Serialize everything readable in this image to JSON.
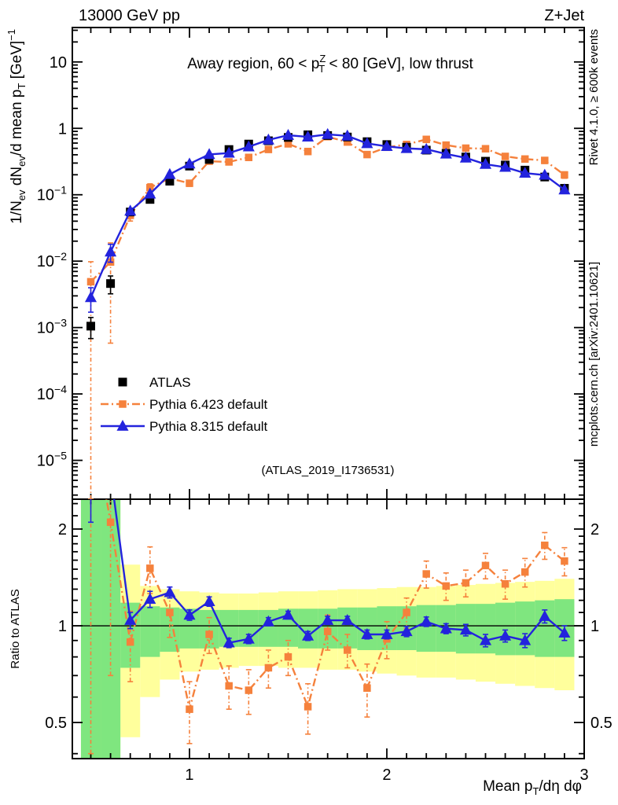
{
  "header": {
    "left": "13000 GeV pp",
    "right": "Z+Jet"
  },
  "side_notes": {
    "top": "Rivet 4.1.0, ≥ 600k events",
    "bottom": "mcplots.cern.ch [arXiv:2401.10621]"
  },
  "watermark": "(ATLAS_2019_I1736531)",
  "chart_data": {
    "type": "line",
    "title_parts": [
      {
        "t": "Away region, 60 < p"
      },
      {
        "t": "Z",
        "s": "sup"
      },
      {
        "t": "T",
        "s": "sub"
      },
      {
        "t": " < 80 [GeV], low thrust"
      }
    ],
    "ylabel_parts": [
      {
        "t": "1/N"
      },
      {
        "t": "ev",
        "s": "sub"
      },
      {
        "t": " dN"
      },
      {
        "t": "ev",
        "s": "sub"
      },
      {
        "t": "/d mean p"
      },
      {
        "t": "T",
        "s": "sub"
      },
      {
        "t": " [GeV]"
      },
      {
        "t": "−1",
        "s": "sup"
      }
    ],
    "xlabel_parts": [
      {
        "t": "Mean p"
      },
      {
        "t": "T",
        "s": "sub"
      },
      {
        "t": "/dη dφ"
      }
    ],
    "ratio_label": "Ratio to ATLAS",
    "xlim": [
      0.4064,
      3.0
    ],
    "ylim_main": [
      2.6e-06,
      33
    ],
    "ylim_ratio": [
      0.386,
      2.477
    ],
    "x_bin_halfwidth": 0.05,
    "x_major_ticks": [
      {
        "v": 1,
        "t": "1"
      },
      {
        "v": 2,
        "t": "2"
      },
      {
        "v": 3,
        "t": "3"
      }
    ],
    "x_minor_step": 0.1,
    "y_major_ticks": [
      {
        "v": 10,
        "t": "10"
      },
      {
        "v": 1,
        "t": "1"
      },
      {
        "v": 0.1,
        "t": "10",
        "e": "−1"
      },
      {
        "v": 0.01,
        "t": "10",
        "e": "−2"
      },
      {
        "v": 0.001,
        "t": "10",
        "e": "−3"
      },
      {
        "v": 0.0001,
        "t": "10",
        "e": "−4"
      },
      {
        "v": 1e-05,
        "t": "10",
        "e": "−5"
      }
    ],
    "ratio_ticks": [
      {
        "v": 2,
        "t": "2"
      },
      {
        "v": 1,
        "t": "1"
      },
      {
        "v": 0.5,
        "t": "0.5"
      }
    ],
    "ratio_minor_ticks": [
      0.4,
      0.6,
      0.7,
      0.8,
      0.9,
      1.1,
      1.2,
      1.3,
      1.4,
      1.5,
      1.6,
      1.7,
      1.8,
      1.9,
      2.2,
      2.4
    ],
    "x": [
      0.5,
      0.6,
      0.7,
      0.8,
      0.9,
      1.0,
      1.1,
      1.2,
      1.3,
      1.4,
      1.5,
      1.6,
      1.7,
      1.8,
      1.9,
      2.0,
      2.1,
      2.2,
      2.3,
      2.4,
      2.5,
      2.6,
      2.7,
      2.8,
      2.9
    ],
    "series": [
      {
        "name": "ATLAS",
        "color": "#000000",
        "marker": "square",
        "line": "none",
        "values": [
          0.00105,
          0.0046,
          0.055,
          0.085,
          0.16,
          0.27,
          0.34,
          0.48,
          0.58,
          0.65,
          0.73,
          0.8,
          0.78,
          0.74,
          0.63,
          0.57,
          0.52,
          0.47,
          0.42,
          0.37,
          0.32,
          0.28,
          0.235,
          0.185,
          0.125
        ],
        "err_rel": [
          0.35,
          0.3,
          0.06,
          0.05,
          0.04,
          0.03,
          0.03,
          0.025,
          0.025,
          0.025,
          0.025,
          0.025,
          0.025,
          0.025,
          0.025,
          0.025,
          0.025,
          0.03,
          0.03,
          0.03,
          0.03,
          0.035,
          0.04,
          0.045,
          0.05
        ]
      },
      {
        "name": "Pythia 6.423 default",
        "color": "#f5813c",
        "marker": "square",
        "line": "dashdot",
        "values": [
          0.0049,
          0.0097,
          0.049,
          0.128,
          0.176,
          0.149,
          0.32,
          0.312,
          0.365,
          0.481,
          0.584,
          0.448,
          0.749,
          0.622,
          0.403,
          0.519,
          0.572,
          0.682,
          0.559,
          0.503,
          0.493,
          0.378,
          0.345,
          0.329,
          0.199
        ],
        "err_rel": [
          1.0,
          0.94,
          0.18,
          0.14,
          0.12,
          0.1,
          0.08,
          0.07,
          0.07,
          0.06,
          0.06,
          0.07,
          0.07,
          0.07,
          0.08,
          0.08,
          0.08,
          0.09,
          0.09,
          0.09,
          0.09,
          0.1,
          0.1,
          0.1,
          0.11
        ],
        "ratio": [
          4.7,
          2.1,
          0.89,
          1.51,
          1.1,
          0.55,
          0.94,
          0.65,
          0.63,
          0.74,
          0.8,
          0.56,
          0.96,
          0.84,
          0.64,
          0.91,
          1.1,
          1.45,
          1.33,
          1.36,
          1.54,
          1.35,
          1.47,
          1.78,
          1.59
        ],
        "ratio_err": [
          4.3,
          1.4,
          0.22,
          0.25,
          0.18,
          0.12,
          0.12,
          0.1,
          0.1,
          0.1,
          0.1,
          0.1,
          0.12,
          0.1,
          0.12,
          0.12,
          0.12,
          0.14,
          0.13,
          0.13,
          0.14,
          0.14,
          0.15,
          0.17,
          0.16
        ]
      },
      {
        "name": "Pythia 8.315 default",
        "color": "#2323dd",
        "marker": "triangle",
        "line": "solid",
        "values": [
          0.00284,
          0.0138,
          0.057,
          0.103,
          0.203,
          0.292,
          0.405,
          0.425,
          0.528,
          0.67,
          0.788,
          0.744,
          0.811,
          0.77,
          0.592,
          0.536,
          0.499,
          0.484,
          0.412,
          0.359,
          0.288,
          0.26,
          0.212,
          0.198,
          0.119
        ],
        "err_rel": [
          0.4,
          0.3,
          0.05,
          0.05,
          0.04,
          0.03,
          0.03,
          0.025,
          0.025,
          0.025,
          0.025,
          0.025,
          0.025,
          0.025,
          0.025,
          0.025,
          0.03,
          0.03,
          0.03,
          0.035,
          0.035,
          0.035,
          0.04,
          0.045,
          0.05
        ],
        "ratio": [
          2.7,
          3.0,
          1.04,
          1.21,
          1.27,
          1.08,
          1.19,
          0.885,
          0.91,
          1.03,
          1.08,
          0.93,
          1.04,
          1.04,
          0.94,
          0.94,
          0.96,
          1.03,
          0.98,
          0.97,
          0.9,
          0.93,
          0.9,
          1.07,
          0.95
        ],
        "ratio_err": [
          0.6,
          0.5,
          0.06,
          0.07,
          0.05,
          0.04,
          0.04,
          0.03,
          0.03,
          0.03,
          0.03,
          0.03,
          0.03,
          0.03,
          0.03,
          0.03,
          0.035,
          0.035,
          0.035,
          0.04,
          0.04,
          0.04,
          0.045,
          0.05,
          0.05
        ]
      }
    ],
    "ratio_bands": {
      "outer_color": "#ffff9c",
      "inner_color": "#7fe67f",
      "outer_lo": [
        0.38,
        0.38,
        0.45,
        0.6,
        0.68,
        0.72,
        0.73,
        0.74,
        0.75,
        0.75,
        0.74,
        0.74,
        0.73,
        0.73,
        0.72,
        0.71,
        0.7,
        0.69,
        0.69,
        0.68,
        0.67,
        0.66,
        0.65,
        0.64,
        0.63
      ],
      "outer_hi": [
        2.47,
        2.47,
        1.55,
        1.33,
        1.3,
        1.28,
        1.27,
        1.26,
        1.26,
        1.27,
        1.28,
        1.28,
        1.29,
        1.3,
        1.3,
        1.31,
        1.32,
        1.32,
        1.33,
        1.34,
        1.35,
        1.36,
        1.37,
        1.38,
        1.4
      ],
      "inner_lo": [
        0.38,
        0.38,
        0.74,
        0.8,
        0.83,
        0.85,
        0.85,
        0.86,
        0.86,
        0.86,
        0.86,
        0.85,
        0.85,
        0.85,
        0.84,
        0.84,
        0.84,
        0.83,
        0.83,
        0.82,
        0.82,
        0.81,
        0.81,
        0.8,
        0.8
      ],
      "inner_hi": [
        2.47,
        2.47,
        1.18,
        1.15,
        1.14,
        1.13,
        1.12,
        1.12,
        1.12,
        1.12,
        1.13,
        1.13,
        1.13,
        1.14,
        1.14,
        1.15,
        1.15,
        1.16,
        1.16,
        1.17,
        1.17,
        1.18,
        1.19,
        1.2,
        1.21
      ]
    },
    "unity_line": 1,
    "legend_position": "upper-left-of-lower-main"
  }
}
